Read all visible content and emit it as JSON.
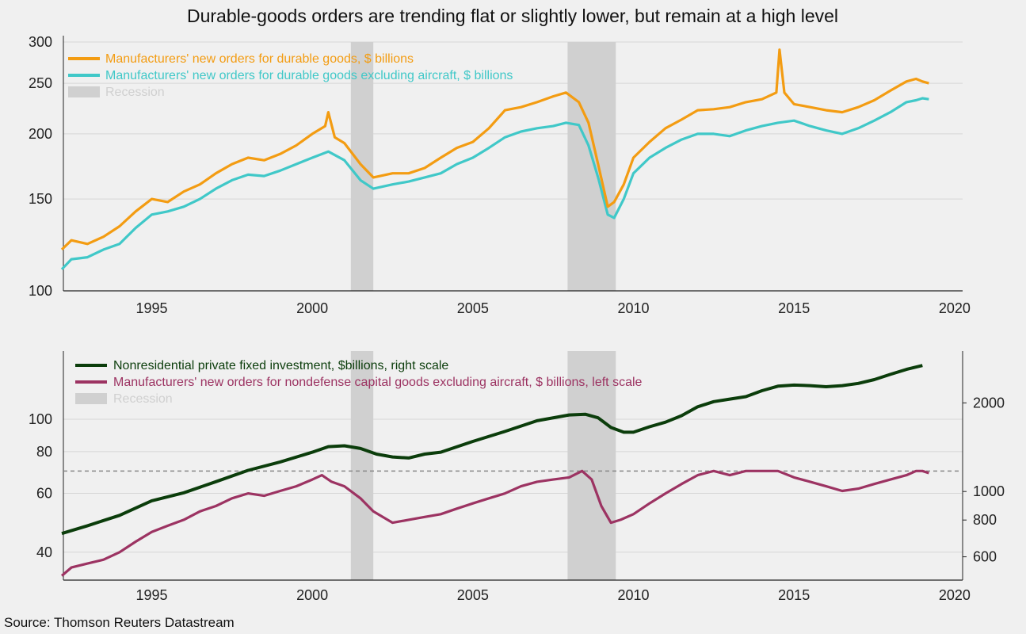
{
  "title": "Durable-goods orders are trending flat or slightly lower, but remain at a high level",
  "source": "Source: Thomson Reuters Datastream",
  "colors": {
    "durable_total": "#F39C12",
    "durable_ex_aircraft": "#40C8C8",
    "nonres_investment": "#0B3D0B",
    "capital_goods": "#9C3362",
    "recession": "#d0d0d0",
    "background": "#f0f0f0",
    "gridline": "#d6d6d6",
    "reference_line": "#888888"
  },
  "chart_data": [
    {
      "type": "line",
      "title": "Durable-goods orders are trending flat or slightly lower, but remain at a high level",
      "yscale": "log",
      "xlim": [
        1992.25,
        2020.25
      ],
      "ylim": [
        100,
        300
      ],
      "xticks": [
        1995,
        2000,
        2005,
        2010,
        2015,
        2020
      ],
      "yticks": [
        100,
        150,
        200,
        250,
        300
      ],
      "grid": true,
      "legend_position": "top-left",
      "recession_label": "Recession",
      "recessions": [
        [
          2001.2,
          2001.9
        ],
        [
          2007.95,
          2009.45
        ]
      ],
      "series": [
        {
          "name": "Manufacturers' new orders for durable goods, $ billions",
          "color_key": "durable_total",
          "x": [
            1992.2,
            1992.5,
            1993.0,
            1993.5,
            1994.0,
            1994.5,
            1995.0,
            1995.5,
            1996.0,
            1996.5,
            1997.0,
            1997.5,
            1998.0,
            1998.5,
            1999.0,
            1999.5,
            2000.0,
            2000.4,
            2000.5,
            2000.7,
            2001.0,
            2001.5,
            2001.9,
            2002.5,
            2003.0,
            2003.5,
            2004.0,
            2004.5,
            2005.0,
            2005.5,
            2006.0,
            2006.5,
            2007.0,
            2007.5,
            2007.9,
            2008.3,
            2008.6,
            2008.9,
            2009.2,
            2009.4,
            2009.7,
            2010.0,
            2010.5,
            2011.0,
            2011.5,
            2012.0,
            2012.5,
            2013.0,
            2013.5,
            2014.0,
            2014.45,
            2014.55,
            2014.7,
            2015.0,
            2015.5,
            2016.0,
            2016.5,
            2017.0,
            2017.5,
            2018.0,
            2018.5,
            2018.8,
            2019.0,
            2019.2
          ],
          "values": [
            120,
            125,
            123,
            127,
            133,
            142,
            150,
            148,
            155,
            160,
            168,
            175,
            180,
            178,
            183,
            190,
            200,
            207,
            220,
            197,
            192,
            175,
            165,
            168,
            168,
            172,
            180,
            188,
            193,
            205,
            222,
            225,
            230,
            236,
            240,
            230,
            210,
            175,
            145,
            148,
            160,
            180,
            193,
            205,
            213,
            222,
            223,
            225,
            230,
            233,
            240,
            290,
            240,
            228,
            225,
            222,
            220,
            225,
            232,
            242,
            252,
            255,
            252,
            250
          ]
        },
        {
          "name": "Manufacturers' new orders for durable goods excluding aircraft, $ billions",
          "color_key": "durable_ex_aircraft",
          "x": [
            1992.2,
            1992.5,
            1993.0,
            1993.5,
            1994.0,
            1994.5,
            1995.0,
            1995.5,
            1996.0,
            1996.5,
            1997.0,
            1997.5,
            1998.0,
            1998.5,
            1999.0,
            1999.5,
            2000.0,
            2000.5,
            2001.0,
            2001.5,
            2001.9,
            2002.5,
            2003.0,
            2003.5,
            2004.0,
            2004.5,
            2005.0,
            2005.5,
            2006.0,
            2006.5,
            2007.0,
            2007.5,
            2007.9,
            2008.3,
            2008.6,
            2008.9,
            2009.2,
            2009.4,
            2009.7,
            2010.0,
            2010.5,
            2011.0,
            2011.5,
            2012.0,
            2012.5,
            2013.0,
            2013.5,
            2014.0,
            2014.5,
            2015.0,
            2015.5,
            2016.0,
            2016.5,
            2017.0,
            2017.5,
            2018.0,
            2018.5,
            2018.8,
            2019.0,
            2019.2
          ],
          "values": [
            110,
            115,
            116,
            120,
            123,
            132,
            140,
            142,
            145,
            150,
            157,
            163,
            167,
            166,
            170,
            175,
            180,
            185,
            178,
            163,
            157,
            160,
            162,
            165,
            168,
            175,
            180,
            188,
            197,
            202,
            205,
            207,
            210,
            208,
            190,
            165,
            140,
            138,
            150,
            168,
            180,
            188,
            195,
            200,
            200,
            198,
            203,
            207,
            210,
            212,
            207,
            203,
            200,
            205,
            212,
            220,
            230,
            232,
            234,
            233
          ]
        }
      ]
    },
    {
      "type": "line",
      "yscale": "log",
      "xlim": [
        1992.25,
        2020.25
      ],
      "left_axis": {
        "ylim": [
          33,
          160
        ],
        "yticks": [
          40,
          60,
          80,
          100
        ]
      },
      "right_axis": {
        "ylim": [
          500,
          3000
        ],
        "yticks": [
          600,
          800,
          1000,
          2000
        ]
      },
      "xticks": [
        1995,
        2000,
        2005,
        2010,
        2015,
        2020
      ],
      "reference_line": {
        "axis": "left",
        "value": 70,
        "style": "dashed"
      },
      "grid": true,
      "legend_position": "top-left",
      "recession_label": "Recession",
      "recessions": [
        [
          2001.2,
          2001.9
        ],
        [
          2007.95,
          2009.45
        ]
      ],
      "series": [
        {
          "name": "Nonresidential private fixed investment, $billions, right scale",
          "axis": "right",
          "color_key": "nonres_investment",
          "x": [
            1992.2,
            1993.0,
            1994.0,
            1995.0,
            1996.0,
            1997.0,
            1998.0,
            1999.0,
            2000.0,
            2000.5,
            2001.0,
            2001.5,
            2002.0,
            2002.5,
            2003.0,
            2003.5,
            2004.0,
            2005.0,
            2006.0,
            2007.0,
            2008.0,
            2008.5,
            2008.9,
            2009.3,
            2009.7,
            2010.0,
            2010.5,
            2011.0,
            2011.5,
            2012.0,
            2012.5,
            2013.0,
            2013.5,
            2014.0,
            2014.5,
            2015.0,
            2015.5,
            2016.0,
            2016.5,
            2017.0,
            2017.5,
            2018.0,
            2018.5,
            2019.0
          ],
          "values": [
            720,
            765,
            830,
            930,
            990,
            1080,
            1180,
            1260,
            1360,
            1420,
            1430,
            1400,
            1340,
            1310,
            1300,
            1340,
            1360,
            1480,
            1600,
            1740,
            1820,
            1830,
            1780,
            1650,
            1590,
            1590,
            1660,
            1720,
            1810,
            1940,
            2020,
            2060,
            2100,
            2200,
            2280,
            2300,
            2290,
            2270,
            2290,
            2330,
            2400,
            2500,
            2600,
            2680
          ]
        },
        {
          "name": "Manufacturers' new orders for nondefense capital goods excluding aircraft, $ billions, left scale",
          "axis": "left",
          "color_key": "capital_goods",
          "x": [
            1992.2,
            1992.5,
            1993.0,
            1993.5,
            1994.0,
            1994.5,
            1995.0,
            1995.5,
            1996.0,
            1996.5,
            1997.0,
            1997.5,
            1998.0,
            1998.5,
            1999.0,
            1999.5,
            2000.0,
            2000.3,
            2000.6,
            2001.0,
            2001.5,
            2001.9,
            2002.5,
            2003.0,
            2003.5,
            2004.0,
            2004.5,
            2005.0,
            2005.5,
            2006.0,
            2006.5,
            2007.0,
            2007.5,
            2008.0,
            2008.4,
            2008.7,
            2009.0,
            2009.3,
            2009.6,
            2010.0,
            2010.5,
            2011.0,
            2011.5,
            2012.0,
            2012.5,
            2013.0,
            2013.5,
            2014.0,
            2014.5,
            2015.0,
            2015.5,
            2016.0,
            2016.5,
            2017.0,
            2017.5,
            2018.0,
            2018.5,
            2018.8,
            2019.0,
            2019.2
          ],
          "values": [
            34,
            36,
            37,
            38,
            40,
            43,
            46,
            48,
            50,
            53,
            55,
            58,
            60,
            59,
            61,
            63,
            66,
            68,
            65,
            63,
            58,
            53,
            49,
            50,
            51,
            52,
            54,
            56,
            58,
            60,
            63,
            65,
            66,
            67,
            70,
            66,
            55,
            49,
            50,
            52,
            56,
            60,
            64,
            68,
            70,
            68,
            70,
            70,
            70,
            67,
            65,
            63,
            61,
            62,
            64,
            66,
            68,
            70,
            70,
            69
          ]
        }
      ]
    }
  ]
}
